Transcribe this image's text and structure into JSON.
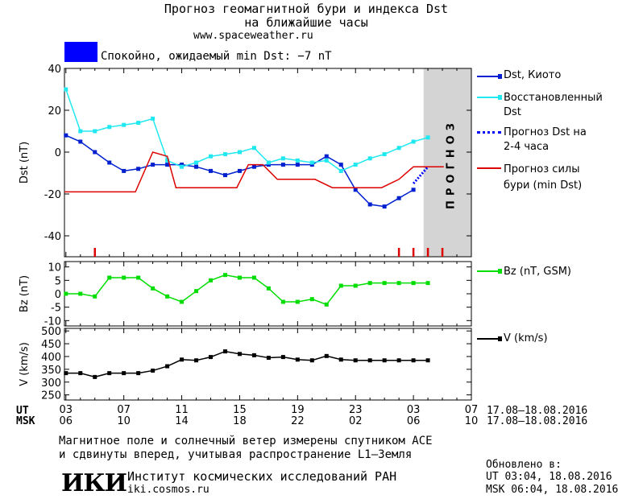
{
  "header": {
    "title_line1": "Прогноз геомагнитной бури и индекса Dst",
    "title_line2": "на ближайшие часы",
    "site": "www.spaceweather.ru"
  },
  "status": {
    "color": "#0000ff",
    "text": "Спокойно, ожидаемый min Dst: −7 nT"
  },
  "colors": {
    "dst": "#0020d0",
    "restored": "#20e8f0",
    "forecast_dst": "#0000ff",
    "storm": "#dd0000",
    "bz": "#00dd00",
    "v": "#000000",
    "forecast_zone": "#d4d4d4"
  },
  "chart_data": [
    {
      "type": "line",
      "panel": "dst",
      "ylabel": "Dst (nT)",
      "ylim": [
        -50,
        40
      ],
      "yticks": [
        40,
        20,
        0,
        -20,
        -40
      ],
      "forecast_label": "ПРОГНОЗ",
      "forecast_from_hour": 27.7,
      "series": [
        {
          "name": "Dst, Киото",
          "key": "dst",
          "x": [
            3,
            4,
            5,
            6,
            7,
            8,
            9,
            10,
            11,
            12,
            13,
            14,
            15,
            16,
            17,
            18,
            19,
            20,
            21,
            22,
            23,
            24,
            25,
            26,
            27
          ],
          "y": [
            8,
            5,
            0,
            -5,
            -9,
            -8,
            -6,
            -6,
            -6,
            -7,
            -9,
            -11,
            -9,
            -7,
            -6,
            -6,
            -6,
            -6,
            -2,
            -6,
            -18,
            -25,
            -26,
            -22,
            -18
          ]
        },
        {
          "name": "Восстановленный Dst",
          "key": "restored",
          "x": [
            3,
            4,
            5,
            6,
            7,
            8,
            9,
            10,
            11,
            12,
            13,
            14,
            15,
            16,
            17,
            18,
            19,
            20,
            21,
            22,
            23,
            24,
            25,
            26,
            27,
            28
          ],
          "y": [
            30,
            10,
            10,
            12,
            13,
            14,
            16,
            -4,
            -7,
            -5,
            -2,
            -1,
            0,
            2,
            -5,
            -3,
            -4,
            -5,
            -4,
            -9,
            -6,
            -3,
            -1,
            2,
            5,
            7
          ]
        },
        {
          "name": "Прогноз Dst на 2-4 часа",
          "key": "forecast_dst",
          "x": [
            27,
            27.5,
            28
          ],
          "y": [
            -15,
            -11,
            -7
          ]
        },
        {
          "name": "Прогноз силы бури (min Dst)",
          "key": "storm",
          "x": [
            2.9,
            7.8,
            9,
            10,
            10.6,
            14.8,
            15.6,
            16.6,
            17.6,
            18.6,
            20.2,
            21.4,
            22.8,
            24.8,
            26,
            27,
            29.1
          ],
          "y": [
            -19,
            -19,
            0,
            -2,
            -17,
            -17,
            -6,
            -6,
            -13,
            -13,
            -13,
            -17,
            -17,
            -17,
            -13,
            -7,
            -7
          ]
        }
      ],
      "storm_ticks_x": [
        5,
        26,
        27,
        28,
        29
      ]
    },
    {
      "type": "line",
      "panel": "bz",
      "ylabel": "Bz (nT)",
      "ylim": [
        -12,
        12
      ],
      "yticks": [
        10,
        5,
        0,
        -5,
        -10
      ],
      "series": [
        {
          "name": "Bz (nT, GSM)",
          "key": "bz",
          "x": [
            3,
            4,
            5,
            6,
            7,
            8,
            9,
            10,
            11,
            12,
            13,
            14,
            15,
            16,
            17,
            18,
            19,
            20,
            21,
            22,
            23,
            24,
            25,
            26,
            27,
            28
          ],
          "y": [
            0,
            0,
            -1,
            6,
            6,
            6,
            2,
            -1,
            -3,
            1,
            5,
            7,
            6,
            6,
            2,
            -3,
            -3,
            -2,
            -4,
            3,
            3,
            4,
            4,
            4,
            4,
            4
          ]
        }
      ]
    },
    {
      "type": "line",
      "panel": "v",
      "ylabel": "V (km/s)",
      "ylim": [
        230,
        510
      ],
      "yticks": [
        500,
        450,
        400,
        350,
        300,
        250
      ],
      "series": [
        {
          "name": "V (km/s)",
          "key": "v",
          "x": [
            3,
            4,
            5,
            6,
            7,
            8,
            9,
            10,
            11,
            12,
            13,
            14,
            15,
            16,
            17,
            18,
            19,
            20,
            21,
            22,
            23,
            24,
            25,
            26,
            27,
            28
          ],
          "y": [
            335,
            335,
            320,
            335,
            335,
            335,
            345,
            362,
            388,
            385,
            398,
            420,
            410,
            405,
            395,
            398,
            388,
            385,
            402,
            388,
            385,
            385,
            385,
            385,
            385,
            385
          ]
        }
      ]
    }
  ],
  "axis_x": {
    "ut_label": "UT",
    "msk_label": "MSK",
    "ut_ticks": [
      "03",
      "07",
      "11",
      "15",
      "19",
      "23",
      "03",
      "07"
    ],
    "msk_ticks": [
      "06",
      "10",
      "14",
      "18",
      "22",
      "02",
      "06",
      "10"
    ],
    "ut_range": "17.08–18.08.2016",
    "msk_range": "17.08–18.08.2016"
  },
  "footer": {
    "note_line1": "Магнитное поле и солнечный ветер измерены спутником ACE",
    "note_line2": "и сдвинуты вперед, учитывая распространение L1–Земля",
    "logo": "ИКИ",
    "institute": "Институт космических исследований РАН",
    "institute_site": "iki.cosmos.ru",
    "updated_title": "Обновлено в:",
    "updated_ut": "UT  03:04, 18.08.2016",
    "updated_msk": "MSK 06:04, 18.08.2016"
  }
}
